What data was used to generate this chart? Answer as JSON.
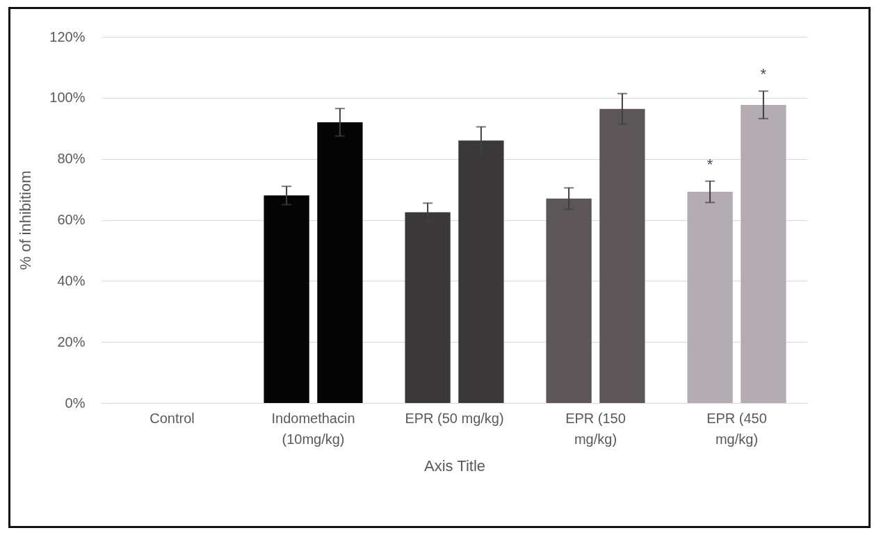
{
  "chart_data": {
    "type": "bar",
    "xlabel": "Axis Title",
    "ylabel": "% of inhibitiom",
    "categories": [
      "Control",
      "Indomethacin\n(10mg/kg)",
      "EPR (50 mg/kg)",
      "EPR (150\nmg/kg)",
      "EPR (450\nmg/kg)"
    ],
    "series": [
      {
        "colors": [
          null,
          "#050505",
          "#3b383a",
          "#5c5658",
          "#b3adb3"
        ],
        "values": [
          null,
          68,
          62.5,
          67,
          69.2
        ],
        "errors": [
          null,
          3,
          3,
          3.5,
          3.5
        ],
        "value_labels": [
          null,
          null,
          null,
          null,
          "*"
        ]
      },
      {
        "colors": [
          null,
          "#050505",
          "#3b383a",
          "#5c5658",
          "#b3adb3"
        ],
        "values": [
          null,
          92,
          86,
          96.4,
          97.7
        ],
        "errors": [
          null,
          4.5,
          4.5,
          5,
          4.5
        ],
        "value_labels": [
          null,
          null,
          null,
          null,
          "*"
        ]
      }
    ],
    "ylim": [
      0,
      120
    ],
    "yticks": [
      {
        "value": 0,
        "label": "0%"
      },
      {
        "value": 20,
        "label": "20%"
      },
      {
        "value": 40,
        "label": "40%"
      },
      {
        "value": 60,
        "label": "60%"
      },
      {
        "value": 80,
        "label": "80%"
      },
      {
        "value": 100,
        "label": "100%"
      },
      {
        "value": 120,
        "label": "120%"
      }
    ],
    "grid": "y"
  }
}
